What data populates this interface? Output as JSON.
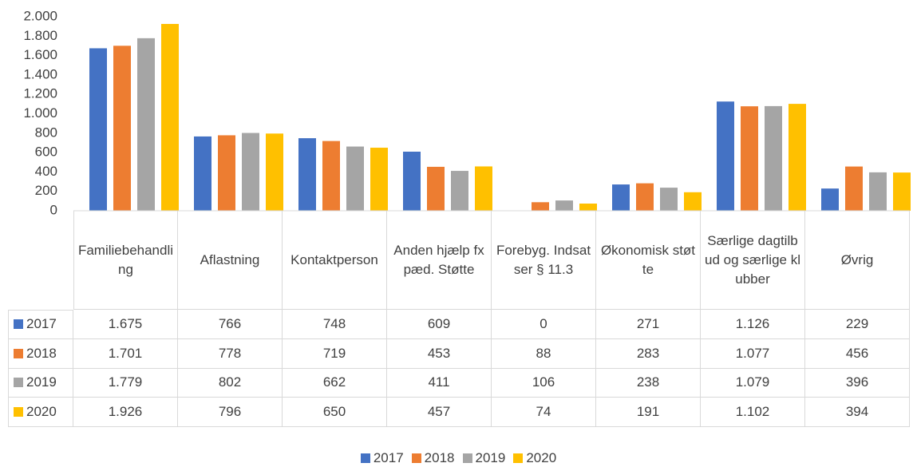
{
  "chart_data": {
    "type": "bar",
    "categories": [
      "Familiebehandling",
      "Aflastning",
      "Kontaktperson",
      "Anden hjælp fx pæd. Støtte",
      "Forebyg. Indsatser § 11.3",
      "Økonomisk støtte",
      "Særlige dagtilbud og særlige klubber",
      "Øvrig"
    ],
    "series": [
      {
        "name": "2017",
        "color": "#4472c4",
        "values": [
          1675,
          766,
          748,
          609,
          0,
          271,
          1126,
          229
        ],
        "value_labels": [
          "1.675",
          "766",
          "748",
          "609",
          "0",
          "271",
          "1.126",
          "229"
        ]
      },
      {
        "name": "2018",
        "color": "#ed7d31",
        "values": [
          1701,
          778,
          719,
          453,
          88,
          283,
          1077,
          456
        ],
        "value_labels": [
          "1.701",
          "778",
          "719",
          "453",
          "88",
          "283",
          "1.077",
          "456"
        ]
      },
      {
        "name": "2019",
        "color": "#a5a5a5",
        "values": [
          1779,
          802,
          662,
          411,
          106,
          238,
          1079,
          396
        ],
        "value_labels": [
          "1.779",
          "802",
          "662",
          "411",
          "106",
          "238",
          "1.079",
          "396"
        ]
      },
      {
        "name": "2020",
        "color": "#ffc000",
        "values": [
          1926,
          796,
          650,
          457,
          74,
          191,
          1102,
          394
        ],
        "value_labels": [
          "1.926",
          "796",
          "650",
          "457",
          "74",
          "191",
          "1.102",
          "394"
        ]
      }
    ],
    "ylim": [
      0,
      2000
    ],
    "yticks": [
      0,
      200,
      400,
      600,
      800,
      {
        "value": 1000,
        "label": "1.000"
      },
      {
        "value": 1200,
        "label": "1.200"
      },
      {
        "value": 1400,
        "label": "1.400"
      },
      {
        "value": 1600,
        "label": "1.600"
      },
      {
        "value": 1800,
        "label": "1.800"
      },
      {
        "value": 2000,
        "label": "2.000"
      }
    ],
    "grid": false,
    "legend": "bottom"
  }
}
